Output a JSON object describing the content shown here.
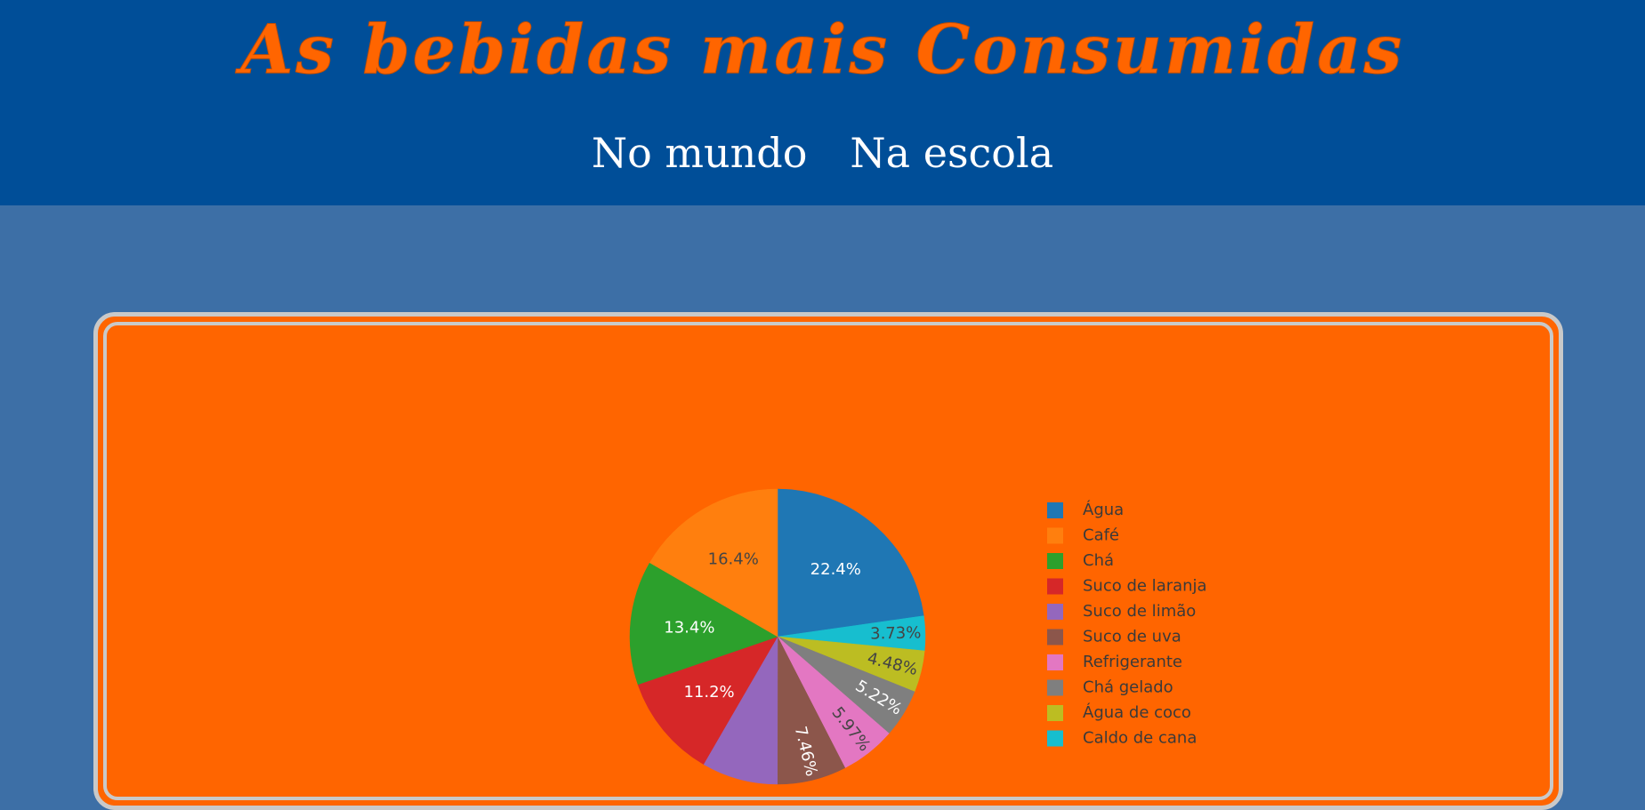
{
  "header": {
    "title": "As bebidas mais Consumidas",
    "nav": [
      {
        "label": "No mundo"
      },
      {
        "label": "Na escola"
      }
    ]
  },
  "colors": {
    "header_bg": "#004e98",
    "page_bg": "#3d6fa6",
    "accent": "#ff6500",
    "card_border": "#c9c9c9"
  },
  "chart_data": {
    "type": "pie",
    "legend_position": "right",
    "slices": [
      {
        "label": "Água",
        "percent": 22.4,
        "text": "22.4%",
        "color": "#1f77b4",
        "text_color": "#ffffff"
      },
      {
        "label": "Café",
        "percent": 16.4,
        "text": "16.4%",
        "color": "#ff7f0e",
        "text_color": "#444444"
      },
      {
        "label": "Chá",
        "percent": 13.4,
        "text": "13.4%",
        "color": "#2ca02c",
        "text_color": "#ffffff"
      },
      {
        "label": "Suco de laranja",
        "percent": 11.2,
        "text": "11.2%",
        "color": "#d62728",
        "text_color": "#ffffff"
      },
      {
        "label": "Suco de limão",
        "percent": 8.21,
        "text": "",
        "color": "#9467bd",
        "text_color": "#ffffff"
      },
      {
        "label": "Suco de uva",
        "percent": 7.46,
        "text": "7.46%",
        "color": "#8c564b",
        "text_color": "#ffffff"
      },
      {
        "label": "Refrigerante",
        "percent": 5.97,
        "text": "5.97%",
        "color": "#e377c2",
        "text_color": "#444444"
      },
      {
        "label": "Chá gelado",
        "percent": 5.22,
        "text": "5.22%",
        "color": "#7f7f7f",
        "text_color": "#ffffff"
      },
      {
        "label": "Água de coco",
        "percent": 4.48,
        "text": "4.48%",
        "color": "#bcbd22",
        "text_color": "#444444"
      },
      {
        "label": "Caldo de cana",
        "percent": 3.73,
        "text": "3.73%",
        "color": "#17becf",
        "text_color": "#444444"
      }
    ]
  }
}
